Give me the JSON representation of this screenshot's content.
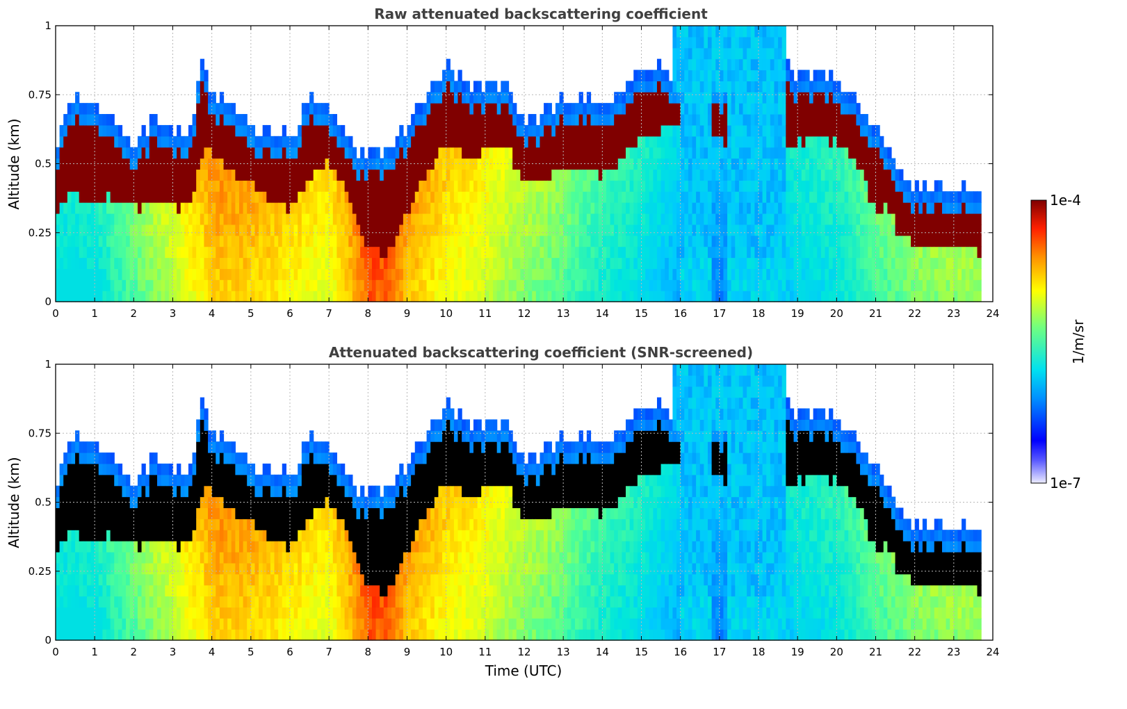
{
  "chart_data": [
    {
      "type": "heatmap",
      "title": "Raw attenuated backscattering coefficient",
      "xlabel": "",
      "ylabel": "Altitude (km)",
      "xlim": [
        0,
        24
      ],
      "ylim": [
        0,
        1
      ],
      "xticks": [
        "0",
        "1",
        "2",
        "3",
        "4",
        "5",
        "6",
        "7",
        "8",
        "9",
        "10",
        "11",
        "12",
        "13",
        "14",
        "15",
        "16",
        "17",
        "18",
        "19",
        "20",
        "21",
        "22",
        "23",
        "24"
      ],
      "yticks": [
        "0",
        "0.25",
        "0.5",
        "0.75",
        "1"
      ],
      "grid": true,
      "screened": false,
      "data_end_time": 23.7,
      "cloud_base_km": [
        [
          0,
          0.35
        ],
        [
          0.5,
          0.38
        ],
        [
          1,
          0.36
        ],
        [
          1.5,
          0.37
        ],
        [
          2,
          0.34
        ],
        [
          2.5,
          0.36
        ],
        [
          3,
          0.34
        ],
        [
          3.5,
          0.35
        ],
        [
          3.7,
          0.52
        ],
        [
          4,
          0.56
        ],
        [
          4.5,
          0.47
        ],
        [
          5,
          0.42
        ],
        [
          5.5,
          0.37
        ],
        [
          6,
          0.33
        ],
        [
          6.5,
          0.44
        ],
        [
          7,
          0.52
        ],
        [
          7.5,
          0.38
        ],
        [
          8,
          0.2
        ],
        [
          8.5,
          0.15
        ],
        [
          9,
          0.33
        ],
        [
          9.5,
          0.47
        ],
        [
          10,
          0.58
        ],
        [
          10.5,
          0.51
        ],
        [
          11,
          0.55
        ],
        [
          11.5,
          0.57
        ],
        [
          12,
          0.44
        ],
        [
          12.5,
          0.45
        ],
        [
          13,
          0.47
        ],
        [
          13.5,
          0.48
        ],
        [
          14,
          0.45
        ],
        [
          14.5,
          0.52
        ],
        [
          15,
          0.6
        ],
        [
          15.5,
          0.63
        ],
        [
          16,
          0.63
        ],
        [
          16.8,
          0.6
        ],
        [
          17.2,
          0.56
        ],
        [
          18.7,
          0.55
        ],
        [
          19,
          0.58
        ],
        [
          19.5,
          0.6
        ],
        [
          20,
          0.57
        ],
        [
          20.5,
          0.5
        ],
        [
          21,
          0.34
        ],
        [
          21.3,
          0.33
        ],
        [
          21.6,
          0.25
        ],
        [
          22,
          0.21
        ],
        [
          22.5,
          0.2
        ],
        [
          23,
          0.2
        ],
        [
          23.7,
          0.18
        ]
      ],
      "cloud_top_km": [
        [
          0,
          0.5
        ],
        [
          0.5,
          0.68
        ],
        [
          1,
          0.62
        ],
        [
          1.5,
          0.58
        ],
        [
          2,
          0.48
        ],
        [
          2.5,
          0.58
        ],
        [
          3,
          0.53
        ],
        [
          3.5,
          0.55
        ],
        [
          3.7,
          0.78
        ],
        [
          4,
          0.68
        ],
        [
          4.5,
          0.62
        ],
        [
          5,
          0.56
        ],
        [
          5.5,
          0.52
        ],
        [
          6,
          0.52
        ],
        [
          6.5,
          0.66
        ],
        [
          7,
          0.65
        ],
        [
          7.5,
          0.5
        ],
        [
          8,
          0.46
        ],
        [
          8.5,
          0.48
        ],
        [
          9,
          0.56
        ],
        [
          9.5,
          0.66
        ],
        [
          10,
          0.78
        ],
        [
          10.5,
          0.7
        ],
        [
          11,
          0.7
        ],
        [
          11.5,
          0.72
        ],
        [
          12,
          0.57
        ],
        [
          12.5,
          0.6
        ],
        [
          13,
          0.65
        ],
        [
          13.5,
          0.65
        ],
        [
          14,
          0.62
        ],
        [
          14.5,
          0.68
        ],
        [
          15,
          0.74
        ],
        [
          15.5,
          0.76
        ],
        [
          16,
          0.72
        ],
        [
          16.8,
          0.72
        ],
        [
          17.2,
          0.7
        ],
        [
          18.7,
          0.76
        ],
        [
          19,
          0.74
        ],
        [
          19.5,
          0.75
        ],
        [
          20,
          0.72
        ],
        [
          20.5,
          0.65
        ],
        [
          21,
          0.55
        ],
        [
          21.3,
          0.5
        ],
        [
          21.6,
          0.37
        ],
        [
          22,
          0.33
        ],
        [
          22.5,
          0.34
        ],
        [
          23,
          0.33
        ],
        [
          23.7,
          0.31
        ]
      ],
      "cloud_gaps_hours": [
        [
          16.0,
          16.8
        ],
        [
          17.2,
          18.7
        ]
      ],
      "high_signal_blue_hours": [
        [
          15.8,
          18.7
        ]
      ]
    },
    {
      "type": "heatmap",
      "title": "Attenuated backscattering coefficient (SNR-screened)",
      "xlabel": "Time (UTC)",
      "ylabel": "Altitude (km)",
      "xlim": [
        0,
        24
      ],
      "ylim": [
        0,
        1
      ],
      "xticks": [
        "0",
        "1",
        "2",
        "3",
        "4",
        "5",
        "6",
        "7",
        "8",
        "9",
        "10",
        "11",
        "12",
        "13",
        "14",
        "15",
        "16",
        "17",
        "18",
        "19",
        "20",
        "21",
        "22",
        "23",
        "24"
      ],
      "yticks": [
        "0",
        "0.25",
        "0.5",
        "0.75",
        "1"
      ],
      "grid": true,
      "screened": true,
      "data_end_time": 23.7
    }
  ],
  "colorbar": {
    "label": "1/m/sr",
    "max_label": "1e-4",
    "min_label": "1e-7",
    "colormap": "jet",
    "scale": "log",
    "range": [
      1e-07,
      0.0001
    ]
  },
  "colors": {
    "title": "#404040",
    "screened_fill": "#000000"
  }
}
